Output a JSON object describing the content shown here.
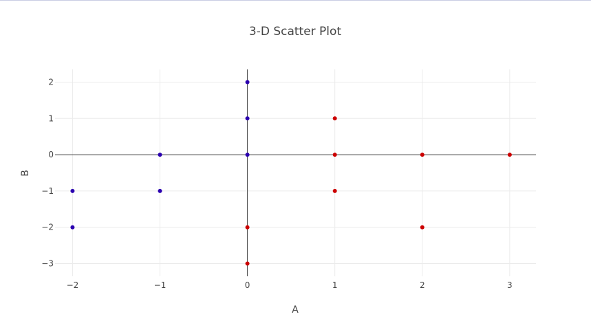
{
  "chart_data": {
    "type": "scatter",
    "title": "3-D Scatter Plot",
    "xlabel": "A",
    "ylabel": "B",
    "xlim": [
      -2.2,
      3.3
    ],
    "ylim": [
      -3.35,
      2.35
    ],
    "xticks": [
      -2,
      -1,
      0,
      1,
      2,
      3
    ],
    "yticks": [
      -3,
      -2,
      -1,
      0,
      1,
      2
    ],
    "xtick_labels": [
      "−2",
      "−1",
      "0",
      "1",
      "2",
      "3"
    ],
    "ytick_labels": [
      "−3",
      "−2",
      "−1",
      "0",
      "1",
      "2"
    ],
    "grid": true,
    "zerolines": true,
    "legend": "none",
    "series": [
      {
        "color": "#2b00b0",
        "x": [
          -2,
          -2,
          -1,
          -1,
          0,
          0,
          0
        ],
        "y": [
          -1,
          -2,
          0,
          -1,
          2,
          1,
          0
        ]
      },
      {
        "color": "#cc0000",
        "x": [
          1,
          1,
          1,
          2,
          2,
          3,
          0,
          0
        ],
        "y": [
          1,
          0,
          -1,
          0,
          -2,
          0,
          -2,
          -3
        ]
      }
    ]
  }
}
